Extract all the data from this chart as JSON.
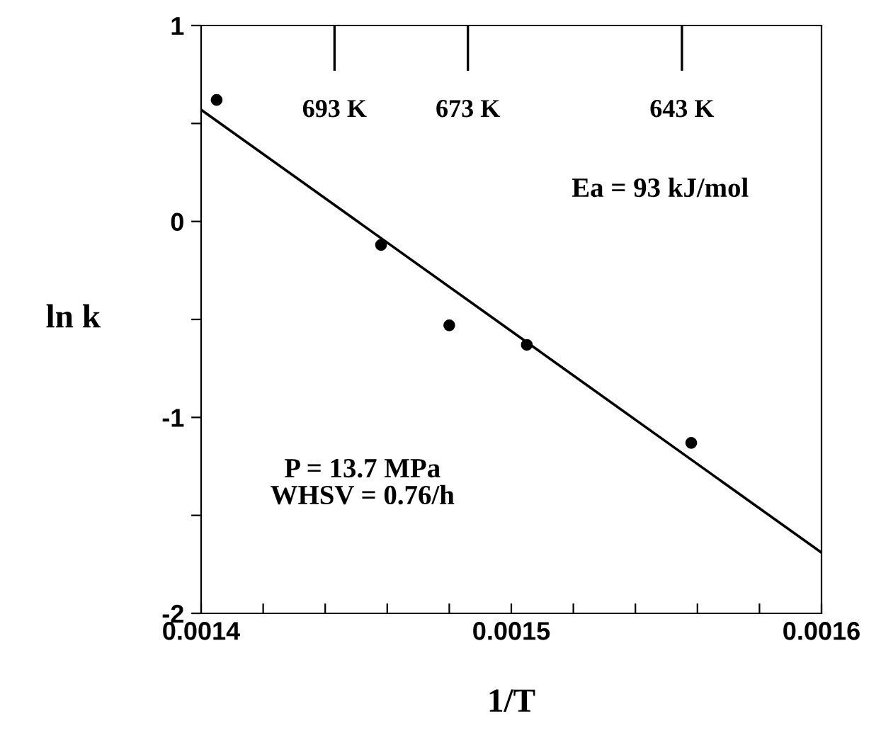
{
  "chart_data": {
    "type": "scatter",
    "xlabel": "1/T",
    "ylabel": "ln k",
    "xlim": [
      0.0014,
      0.0016
    ],
    "ylim": [
      -2,
      1
    ],
    "xticks": [
      {
        "value": 0.0014,
        "label": "0.0014"
      },
      {
        "value": 0.00142,
        "label": null
      },
      {
        "value": 0.00144,
        "label": null
      },
      {
        "value": 0.00146,
        "label": null
      },
      {
        "value": 0.00148,
        "label": null
      },
      {
        "value": 0.0015,
        "label": "0.0015"
      },
      {
        "value": 0.00152,
        "label": null
      },
      {
        "value": 0.00154,
        "label": null
      },
      {
        "value": 0.00156,
        "label": null
      },
      {
        "value": 0.00158,
        "label": null
      },
      {
        "value": 0.0016,
        "label": "0.0016"
      }
    ],
    "yticks": [
      -2,
      {
        "value": -1.5,
        "label": null
      },
      -1,
      {
        "value": -0.5,
        "label": null
      },
      0,
      {
        "value": 0.5,
        "label": null
      },
      1
    ],
    "ref_lines": [
      {
        "axis": "x",
        "value": 0.001443,
        "label": "693 K",
        "color": "#000000",
        "line_style": "solid"
      },
      {
        "axis": "x",
        "value": 0.001486,
        "label": "673 K",
        "color": "#000000",
        "line_style": "solid"
      },
      {
        "axis": "x",
        "value": 0.001555,
        "label": "643 K",
        "color": "#000000",
        "line_style": "solid"
      }
    ],
    "marker": "circle",
    "grid": false,
    "legend": false,
    "series": [
      {
        "color": "#000000",
        "x": [
          0.001405,
          0.001458,
          0.00148,
          0.001505,
          0.001558
        ],
        "values": [
          0.62,
          -0.12,
          -0.53,
          -0.63,
          -1.13
        ]
      },
      {
        "type": "line",
        "color": "#000000",
        "x": [
          0.0014,
          0.0016
        ],
        "values": [
          0.57,
          -1.69
        ],
        "marker": "none",
        "line_style": "solid"
      }
    ],
    "annotations": [
      "Ea = 93 kJ/mol",
      "P = 13.7 MPa\nWHSV = 0.76/h"
    ]
  }
}
